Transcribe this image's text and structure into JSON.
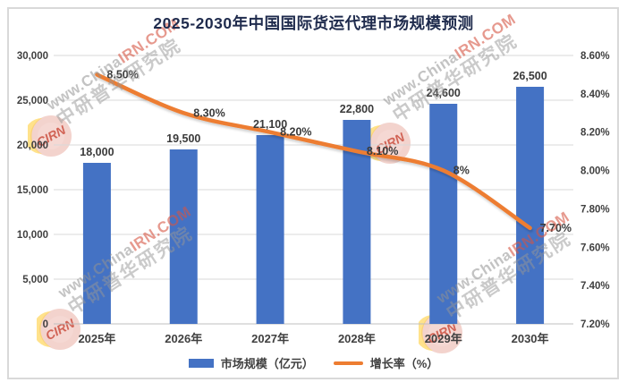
{
  "title": "2025-2030年中国国际货运代理市场规模预测",
  "chart_data": {
    "type": "combo-bar-line",
    "title": "2025-2030年中国国际货运代理市场规模预测",
    "categories": [
      "2025年",
      "2026年",
      "2027年",
      "2028年",
      "2029年",
      "2030年"
    ],
    "series": [
      {
        "name": "市场规模（亿元）",
        "type": "bar",
        "axis": "left",
        "color": "#4472C4",
        "values": [
          18000,
          19500,
          21100,
          22800,
          24600,
          26500
        ],
        "data_labels": [
          "18,000",
          "19,500",
          "21,100",
          "22,800",
          "24,600",
          "26,500"
        ]
      },
      {
        "name": "增长率（%）",
        "type": "line",
        "axis": "right",
        "color": "#ED7D31",
        "values": [
          8.5,
          8.3,
          8.2,
          8.1,
          8.0,
          7.7
        ],
        "data_labels": [
          "8.50%",
          "8.30%",
          "8.20%",
          "8.10%",
          "8%",
          "7.70%"
        ]
      }
    ],
    "left_axis": {
      "min": 0,
      "max": 30000,
      "step": 5000,
      "tick_labels_top_to_bottom": [
        "30,000",
        "25,000",
        "20,000",
        "15,000",
        "10,000",
        "5,000",
        "0"
      ]
    },
    "right_axis": {
      "min": 7.2,
      "max": 8.6,
      "step": 0.2,
      "tick_labels_top_to_bottom": [
        "8.60%",
        "8.40%",
        "8.20%",
        "8.00%",
        "7.80%",
        "7.60%",
        "7.40%",
        "7.20%"
      ]
    },
    "grid": true,
    "legend_position": "bottom"
  },
  "legend": {
    "items": [
      {
        "label": "市场规模（亿元）",
        "swatch": "bar"
      },
      {
        "label": "增长率（%）",
        "swatch": "line"
      }
    ]
  },
  "watermark": {
    "logo_text": "CIRN",
    "url_gray": "www.China",
    "url_red": "IRN.COM",
    "brand": "中研普华研究院"
  },
  "colors": {
    "bar": "#4472C4",
    "line": "#ED7D31",
    "grid": "#D9D9D9",
    "axis_line": "#BFBFBF",
    "tick_text": "#404040",
    "title": "#1F2B4D",
    "frame_border": "#D9D9D9"
  }
}
